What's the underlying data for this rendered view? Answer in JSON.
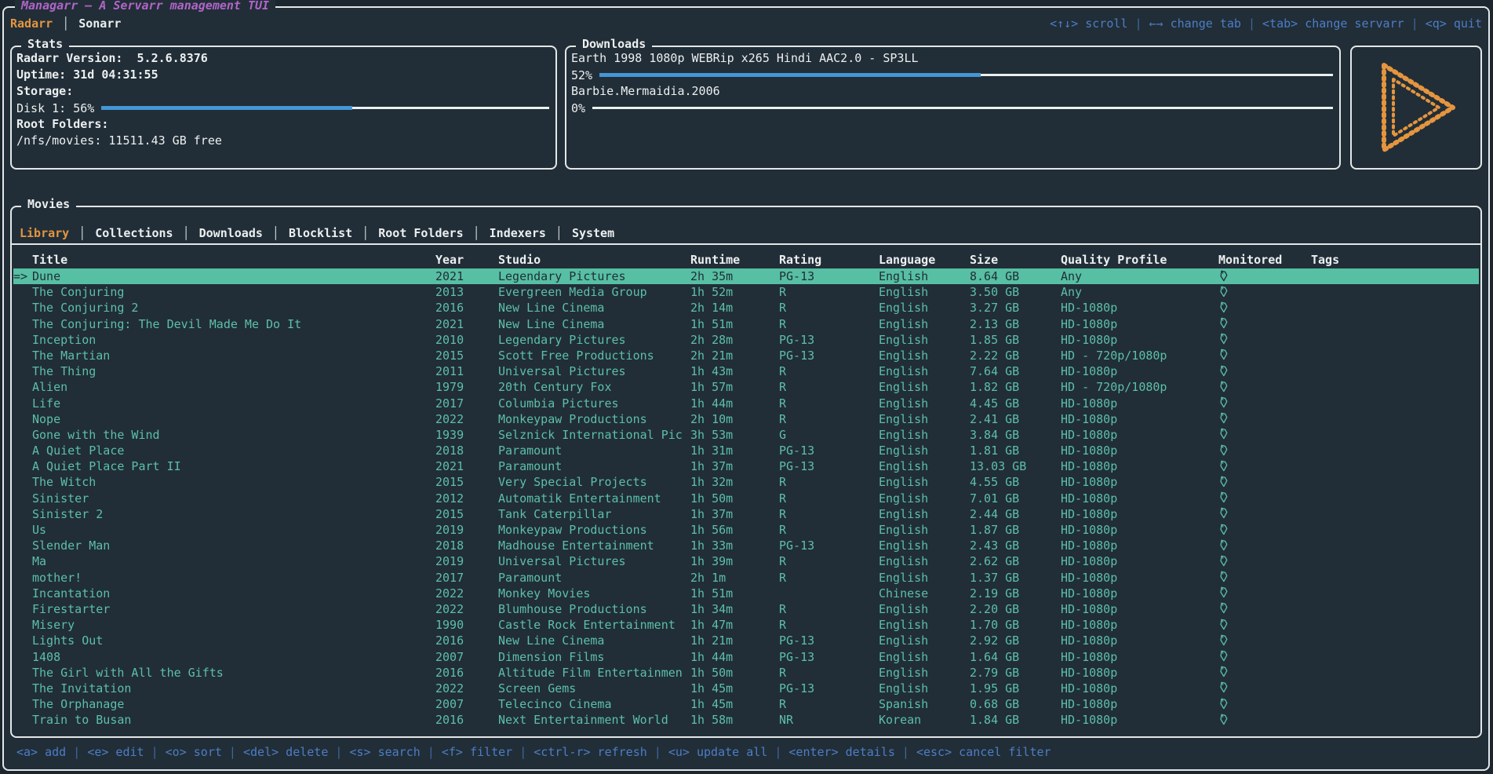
{
  "app": {
    "title": "Managarr – A Servarr management TUI"
  },
  "colors": {
    "bg": "#212e37",
    "page": "#1b262e",
    "border": "#e4e7e7",
    "text": "#eceff0",
    "magenta": "#b164c9",
    "orange": "#e5953f",
    "blue": "#4d7dc7",
    "gauge": "#4596d5",
    "teal": "#5dbfa9",
    "selbg": "#57bfa3",
    "seltext": "#1f2e36"
  },
  "servarr_tabs": [
    {
      "label": "Radarr",
      "active": true
    },
    {
      "label": "Sonarr",
      "active": false
    }
  ],
  "top_keybinds": [
    {
      "key": "<↑↓>",
      "action": "scroll"
    },
    {
      "key": "←→",
      "action": "change tab"
    },
    {
      "key": "<tab>",
      "action": "change servarr"
    },
    {
      "key": "<q>",
      "action": "quit"
    }
  ],
  "stats": {
    "title": "Stats",
    "version_line": "Radarr Version:  5.2.6.8376",
    "uptime_line": "Uptime: 31d 04:31:55",
    "storage_label": "Storage:",
    "disk_label": "Disk 1: 56%",
    "disk_percent": 56,
    "root_folders_label": "Root Folders:",
    "root_folder_line": "/nfs/movies: 11511.43 GB free"
  },
  "downloads": {
    "title": "Downloads",
    "items": [
      {
        "name": "Earth 1998 1080p WEBRip x265 Hindi AAC2.0 - SP3LL",
        "percent_label": "52%",
        "percent": 52
      },
      {
        "name": "Barbie.Mermaidia.2006",
        "percent_label": "0%",
        "percent": 0
      }
    ]
  },
  "logo": {
    "name": "managarr-play-logo",
    "color": "#e5953f"
  },
  "movies": {
    "title": "Movies",
    "tabs": [
      {
        "label": "Library",
        "active": true
      },
      {
        "label": "Collections",
        "active": false
      },
      {
        "label": "Downloads",
        "active": false
      },
      {
        "label": "Blocklist",
        "active": false
      },
      {
        "label": "Root Folders",
        "active": false
      },
      {
        "label": "Indexers",
        "active": false
      },
      {
        "label": "System",
        "active": false
      }
    ],
    "columns": [
      "Title",
      "Year",
      "Studio",
      "Runtime",
      "Rating",
      "Language",
      "Size",
      "Quality Profile",
      "Monitored",
      "Tags"
    ],
    "selected_index": 0,
    "selected_marker": "=>",
    "rows": [
      {
        "title": "Dune",
        "year": "2021",
        "studio": "Legendary Pictures",
        "runtime": "2h 35m",
        "rating": "PG-13",
        "language": "English",
        "size": "8.64 GB",
        "quality_profile": "Any",
        "monitored": true,
        "tags": ""
      },
      {
        "title": "The Conjuring",
        "year": "2013",
        "studio": "Evergreen Media Group",
        "runtime": "1h 52m",
        "rating": "R",
        "language": "English",
        "size": "3.50 GB",
        "quality_profile": "Any",
        "monitored": true,
        "tags": ""
      },
      {
        "title": "The Conjuring 2",
        "year": "2016",
        "studio": "New Line Cinema",
        "runtime": "2h 14m",
        "rating": "R",
        "language": "English",
        "size": "3.27 GB",
        "quality_profile": "HD-1080p",
        "monitored": true,
        "tags": ""
      },
      {
        "title": "The Conjuring: The Devil Made Me Do It",
        "year": "2021",
        "studio": "New Line Cinema",
        "runtime": "1h 51m",
        "rating": "R",
        "language": "English",
        "size": "2.13 GB",
        "quality_profile": "HD-1080p",
        "monitored": true,
        "tags": ""
      },
      {
        "title": "Inception",
        "year": "2010",
        "studio": "Legendary Pictures",
        "runtime": "2h 28m",
        "rating": "PG-13",
        "language": "English",
        "size": "1.85 GB",
        "quality_profile": "HD-1080p",
        "monitored": true,
        "tags": ""
      },
      {
        "title": "The Martian",
        "year": "2015",
        "studio": "Scott Free Productions",
        "runtime": "2h 21m",
        "rating": "PG-13",
        "language": "English",
        "size": "2.22 GB",
        "quality_profile": "HD - 720p/1080p",
        "monitored": true,
        "tags": ""
      },
      {
        "title": "The Thing",
        "year": "2011",
        "studio": "Universal Pictures",
        "runtime": "1h 43m",
        "rating": "R",
        "language": "English",
        "size": "7.64 GB",
        "quality_profile": "HD-1080p",
        "monitored": true,
        "tags": ""
      },
      {
        "title": "Alien",
        "year": "1979",
        "studio": "20th Century Fox",
        "runtime": "1h 57m",
        "rating": "R",
        "language": "English",
        "size": "1.82 GB",
        "quality_profile": "HD - 720p/1080p",
        "monitored": true,
        "tags": ""
      },
      {
        "title": "Life",
        "year": "2017",
        "studio": "Columbia Pictures",
        "runtime": "1h 44m",
        "rating": "R",
        "language": "English",
        "size": "4.45 GB",
        "quality_profile": "HD-1080p",
        "monitored": true,
        "tags": ""
      },
      {
        "title": "Nope",
        "year": "2022",
        "studio": "Monkeypaw Productions",
        "runtime": "2h 10m",
        "rating": "R",
        "language": "English",
        "size": "2.41 GB",
        "quality_profile": "HD-1080p",
        "monitored": true,
        "tags": ""
      },
      {
        "title": "Gone with the Wind",
        "year": "1939",
        "studio": "Selznick International Pic",
        "runtime": "3h 53m",
        "rating": "G",
        "language": "English",
        "size": "3.84 GB",
        "quality_profile": "HD-1080p",
        "monitored": true,
        "tags": ""
      },
      {
        "title": "A Quiet Place",
        "year": "2018",
        "studio": "Paramount",
        "runtime": "1h 31m",
        "rating": "PG-13",
        "language": "English",
        "size": "1.81 GB",
        "quality_profile": "HD-1080p",
        "monitored": true,
        "tags": ""
      },
      {
        "title": "A Quiet Place Part II",
        "year": "2021",
        "studio": "Paramount",
        "runtime": "1h 37m",
        "rating": "PG-13",
        "language": "English",
        "size": "13.03 GB",
        "quality_profile": "HD-1080p",
        "monitored": true,
        "tags": ""
      },
      {
        "title": "The Witch",
        "year": "2015",
        "studio": "Very Special Projects",
        "runtime": "1h 32m",
        "rating": "R",
        "language": "English",
        "size": "4.55 GB",
        "quality_profile": "HD-1080p",
        "monitored": true,
        "tags": ""
      },
      {
        "title": "Sinister",
        "year": "2012",
        "studio": "Automatik Entertainment",
        "runtime": "1h 50m",
        "rating": "R",
        "language": "English",
        "size": "7.01 GB",
        "quality_profile": "HD-1080p",
        "monitored": true,
        "tags": ""
      },
      {
        "title": "Sinister 2",
        "year": "2015",
        "studio": "Tank Caterpillar",
        "runtime": "1h 37m",
        "rating": "R",
        "language": "English",
        "size": "2.44 GB",
        "quality_profile": "HD-1080p",
        "monitored": true,
        "tags": ""
      },
      {
        "title": "Us",
        "year": "2019",
        "studio": "Monkeypaw Productions",
        "runtime": "1h 56m",
        "rating": "R",
        "language": "English",
        "size": "1.87 GB",
        "quality_profile": "HD-1080p",
        "monitored": true,
        "tags": ""
      },
      {
        "title": "Slender Man",
        "year": "2018",
        "studio": "Madhouse Entertainment",
        "runtime": "1h 33m",
        "rating": "PG-13",
        "language": "English",
        "size": "2.43 GB",
        "quality_profile": "HD-1080p",
        "monitored": true,
        "tags": ""
      },
      {
        "title": "Ma",
        "year": "2019",
        "studio": "Universal Pictures",
        "runtime": "1h 39m",
        "rating": "R",
        "language": "English",
        "size": "2.62 GB",
        "quality_profile": "HD-1080p",
        "monitored": true,
        "tags": ""
      },
      {
        "title": "mother!",
        "year": "2017",
        "studio": "Paramount",
        "runtime": "2h 1m",
        "rating": "R",
        "language": "English",
        "size": "1.37 GB",
        "quality_profile": "HD-1080p",
        "monitored": true,
        "tags": ""
      },
      {
        "title": "Incantation",
        "year": "2022",
        "studio": "Monkey Movies",
        "runtime": "1h 51m",
        "rating": "",
        "language": "Chinese",
        "size": "2.19 GB",
        "quality_profile": "HD-1080p",
        "monitored": true,
        "tags": ""
      },
      {
        "title": "Firestarter",
        "year": "2022",
        "studio": "Blumhouse Productions",
        "runtime": "1h 34m",
        "rating": "R",
        "language": "English",
        "size": "2.20 GB",
        "quality_profile": "HD-1080p",
        "monitored": true,
        "tags": ""
      },
      {
        "title": "Misery",
        "year": "1990",
        "studio": "Castle Rock Entertainment",
        "runtime": "1h 47m",
        "rating": "R",
        "language": "English",
        "size": "1.70 GB",
        "quality_profile": "HD-1080p",
        "monitored": true,
        "tags": ""
      },
      {
        "title": "Lights Out",
        "year": "2016",
        "studio": "New Line Cinema",
        "runtime": "1h 21m",
        "rating": "PG-13",
        "language": "English",
        "size": "2.92 GB",
        "quality_profile": "HD-1080p",
        "monitored": true,
        "tags": ""
      },
      {
        "title": "1408",
        "year": "2007",
        "studio": "Dimension Films",
        "runtime": "1h 44m",
        "rating": "PG-13",
        "language": "English",
        "size": "1.64 GB",
        "quality_profile": "HD-1080p",
        "monitored": true,
        "tags": ""
      },
      {
        "title": "The Girl with All the Gifts",
        "year": "2016",
        "studio": "Altitude Film Entertainmen",
        "runtime": "1h 50m",
        "rating": "R",
        "language": "English",
        "size": "2.79 GB",
        "quality_profile": "HD-1080p",
        "monitored": true,
        "tags": ""
      },
      {
        "title": "The Invitation",
        "year": "2022",
        "studio": "Screen Gems",
        "runtime": "1h 45m",
        "rating": "PG-13",
        "language": "English",
        "size": "1.95 GB",
        "quality_profile": "HD-1080p",
        "monitored": true,
        "tags": ""
      },
      {
        "title": "The Orphanage",
        "year": "2007",
        "studio": "Telecinco Cinema",
        "runtime": "1h 45m",
        "rating": "R",
        "language": "Spanish",
        "size": "0.68 GB",
        "quality_profile": "HD-1080p",
        "monitored": true,
        "tags": ""
      },
      {
        "title": "Train to Busan",
        "year": "2016",
        "studio": "Next Entertainment World",
        "runtime": "1h 58m",
        "rating": "NR",
        "language": "Korean",
        "size": "1.84 GB",
        "quality_profile": "HD-1080p",
        "monitored": true,
        "tags": ""
      }
    ]
  },
  "bottom_keybinds": [
    {
      "key": "<a>",
      "action": "add"
    },
    {
      "key": "<e>",
      "action": "edit"
    },
    {
      "key": "<o>",
      "action": "sort"
    },
    {
      "key": "<del>",
      "action": "delete"
    },
    {
      "key": "<s>",
      "action": "search"
    },
    {
      "key": "<f>",
      "action": "filter"
    },
    {
      "key": "<ctrl-r>",
      "action": "refresh"
    },
    {
      "key": "<u>",
      "action": "update all"
    },
    {
      "key": "<enter>",
      "action": "details"
    },
    {
      "key": "<esc>",
      "action": "cancel filter"
    }
  ]
}
